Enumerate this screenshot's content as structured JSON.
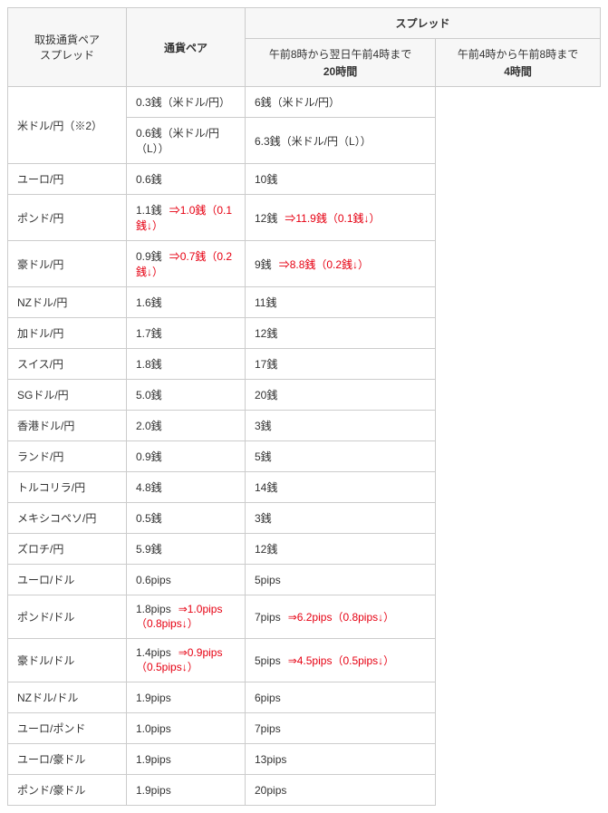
{
  "sideHeader": {
    "line1": "取扱通貨ペア",
    "line2": "スプレッド"
  },
  "headers": {
    "pair": "通貨ペア",
    "spread": "スプレッド",
    "col1_line1": "午前8時から翌日午前4時まで",
    "col1_line2": "20時間",
    "col2_line1": "午前4時から午前8時まで",
    "col2_line2": "4時間"
  },
  "rows": [
    {
      "pair": "米ドル/円（※2）",
      "rowspan": 2,
      "c1": "0.3銭（米ドル/円）",
      "c2": "6銭（米ドル/円）"
    },
    {
      "c1": "0.6銭（米ドル/円（L））",
      "c2": "6.3銭（米ドル/円（L））"
    },
    {
      "pair": "ユーロ/円",
      "c1": "0.6銭",
      "c2": "10銭"
    },
    {
      "pair": "ポンド/円",
      "c1": "1.1銭",
      "c1_hl": "⇒1.0銭（0.1銭↓）",
      "c2": "12銭",
      "c2_hl": "⇒11.9銭（0.1銭↓）"
    },
    {
      "pair": "豪ドル/円",
      "c1": "0.9銭",
      "c1_hl": "⇒0.7銭（0.2銭↓）",
      "c2": "9銭",
      "c2_hl": "⇒8.8銭（0.2銭↓）"
    },
    {
      "pair": "NZドル/円",
      "c1": "1.6銭",
      "c2": "11銭"
    },
    {
      "pair": "加ドル/円",
      "c1": "1.7銭",
      "c2": "12銭"
    },
    {
      "pair": "スイス/円",
      "c1": "1.8銭",
      "c2": "17銭"
    },
    {
      "pair": "SGドル/円",
      "c1": "5.0銭",
      "c2": "20銭"
    },
    {
      "pair": "香港ドル/円",
      "c1": "2.0銭",
      "c2": "3銭"
    },
    {
      "pair": "ランド/円",
      "c1": "0.9銭",
      "c2": "5銭"
    },
    {
      "pair": "トルコリラ/円",
      "c1": "4.8銭",
      "c2": "14銭"
    },
    {
      "pair": "メキシコペソ/円",
      "c1": "0.5銭",
      "c2": "3銭"
    },
    {
      "pair": "ズロチ/円",
      "c1": "5.9銭",
      "c2": "12銭"
    },
    {
      "pair": "ユーロ/ドル",
      "c1": "0.6pips",
      "c2": "5pips"
    },
    {
      "pair": "ポンド/ドル",
      "c1": "1.8pips",
      "c1_hl": "⇒1.0pips（0.8pips↓）",
      "c2": "7pips",
      "c2_hl": "⇒6.2pips（0.8pips↓）"
    },
    {
      "pair": "豪ドル/ドル",
      "c1": "1.4pips",
      "c1_hl": "⇒0.9pips（0.5pips↓）",
      "c2": "5pips",
      "c2_hl": "⇒4.5pips（0.5pips↓）"
    },
    {
      "pair": "NZドル/ドル",
      "c1": "1.9pips",
      "c2": "6pips"
    },
    {
      "pair": "ユーロ/ポンド",
      "c1": "1.0pips",
      "c2": "7pips"
    },
    {
      "pair": "ユーロ/豪ドル",
      "c1": "1.9pips",
      "c2": "13pips"
    },
    {
      "pair": "ポンド/豪ドル",
      "c1": "1.9pips",
      "c2": "20pips"
    }
  ],
  "colors": {
    "highlight": "#e60012",
    "border": "#cccccc",
    "headerBg": "#f7f7f7",
    "text": "#333333"
  }
}
